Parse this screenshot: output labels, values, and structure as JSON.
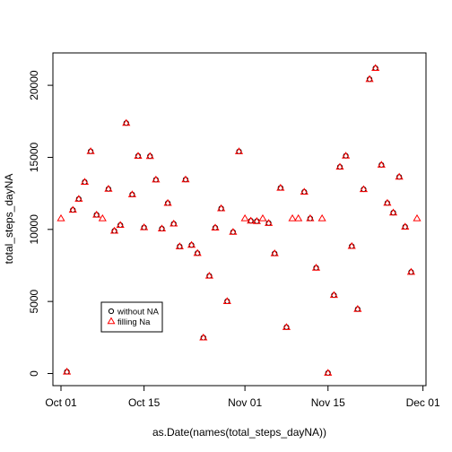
{
  "chart_data": {
    "type": "scatter",
    "xlabel": "as.Date(names(total_steps_dayNA))",
    "ylabel": "total_steps_dayNA",
    "xlim": [
      "2012-10-01",
      "2012-11-30"
    ],
    "ylim": [
      0,
      21500
    ],
    "x_ticks": [
      {
        "date": "2012-10-01",
        "label": "Oct 01"
      },
      {
        "date": "2012-10-15",
        "label": "Oct 15"
      },
      {
        "date": "2012-11-01",
        "label": "Nov 01"
      },
      {
        "date": "2012-11-15",
        "label": "Nov 15"
      },
      {
        "date": "2012-12-01",
        "label": "Dec 01"
      }
    ],
    "y_ticks": [
      0,
      5000,
      10000,
      15000,
      20000
    ],
    "legend": {
      "position": "bottom-left",
      "entries": [
        {
          "label": "without NA",
          "marker": "circle",
          "color": "#000000"
        },
        {
          "label": "filling Na",
          "marker": "triangle",
          "color": "#ff0000"
        }
      ]
    },
    "series": [
      {
        "name": "without NA",
        "marker": "circle",
        "color": "#000000",
        "points": [
          [
            "2012-10-02",
            126
          ],
          [
            "2012-10-03",
            11352
          ],
          [
            "2012-10-04",
            12116
          ],
          [
            "2012-10-05",
            13294
          ],
          [
            "2012-10-06",
            15420
          ],
          [
            "2012-10-07",
            11015
          ],
          [
            "2012-10-09",
            12811
          ],
          [
            "2012-10-10",
            9900
          ],
          [
            "2012-10-11",
            10304
          ],
          [
            "2012-10-12",
            17382
          ],
          [
            "2012-10-13",
            12426
          ],
          [
            "2012-10-14",
            15098
          ],
          [
            "2012-10-15",
            10139
          ],
          [
            "2012-10-16",
            15084
          ],
          [
            "2012-10-17",
            13452
          ],
          [
            "2012-10-18",
            10056
          ],
          [
            "2012-10-19",
            11829
          ],
          [
            "2012-10-20",
            10395
          ],
          [
            "2012-10-21",
            8821
          ],
          [
            "2012-10-22",
            13460
          ],
          [
            "2012-10-23",
            8918
          ],
          [
            "2012-10-24",
            8355
          ],
          [
            "2012-10-25",
            2492
          ],
          [
            "2012-10-26",
            6778
          ],
          [
            "2012-10-27",
            10119
          ],
          [
            "2012-10-28",
            11458
          ],
          [
            "2012-10-29",
            5018
          ],
          [
            "2012-10-30",
            9819
          ],
          [
            "2012-10-31",
            15414
          ],
          [
            "2012-11-02",
            10600
          ],
          [
            "2012-11-03",
            10571
          ],
          [
            "2012-11-05",
            10439
          ],
          [
            "2012-11-06",
            8334
          ],
          [
            "2012-11-07",
            12883
          ],
          [
            "2012-11-08",
            3219
          ],
          [
            "2012-11-11",
            12608
          ],
          [
            "2012-11-12",
            10765
          ],
          [
            "2012-11-13",
            7336
          ],
          [
            "2012-11-15",
            41
          ],
          [
            "2012-11-16",
            5441
          ],
          [
            "2012-11-17",
            14339
          ],
          [
            "2012-11-18",
            15110
          ],
          [
            "2012-11-19",
            8841
          ],
          [
            "2012-11-20",
            4472
          ],
          [
            "2012-11-21",
            12787
          ],
          [
            "2012-11-22",
            20427
          ],
          [
            "2012-11-23",
            21194
          ],
          [
            "2012-11-24",
            14478
          ],
          [
            "2012-11-25",
            11834
          ],
          [
            "2012-11-26",
            11162
          ],
          [
            "2012-11-27",
            13646
          ],
          [
            "2012-11-28",
            10183
          ],
          [
            "2012-11-29",
            7047
          ]
        ]
      },
      {
        "name": "filling Na",
        "marker": "triangle",
        "color": "#ff0000",
        "points": [
          [
            "2012-10-01",
            10766
          ],
          [
            "2012-10-02",
            126
          ],
          [
            "2012-10-03",
            11352
          ],
          [
            "2012-10-04",
            12116
          ],
          [
            "2012-10-05",
            13294
          ],
          [
            "2012-10-06",
            15420
          ],
          [
            "2012-10-07",
            11015
          ],
          [
            "2012-10-08",
            10766
          ],
          [
            "2012-10-09",
            12811
          ],
          [
            "2012-10-10",
            9900
          ],
          [
            "2012-10-11",
            10304
          ],
          [
            "2012-10-12",
            17382
          ],
          [
            "2012-10-13",
            12426
          ],
          [
            "2012-10-14",
            15098
          ],
          [
            "2012-10-15",
            10139
          ],
          [
            "2012-10-16",
            15084
          ],
          [
            "2012-10-17",
            13452
          ],
          [
            "2012-10-18",
            10056
          ],
          [
            "2012-10-19",
            11829
          ],
          [
            "2012-10-20",
            10395
          ],
          [
            "2012-10-21",
            8821
          ],
          [
            "2012-10-22",
            13460
          ],
          [
            "2012-10-23",
            8918
          ],
          [
            "2012-10-24",
            8355
          ],
          [
            "2012-10-25",
            2492
          ],
          [
            "2012-10-26",
            6778
          ],
          [
            "2012-10-27",
            10119
          ],
          [
            "2012-10-28",
            11458
          ],
          [
            "2012-10-29",
            5018
          ],
          [
            "2012-10-30",
            9819
          ],
          [
            "2012-10-31",
            15414
          ],
          [
            "2012-11-01",
            10766
          ],
          [
            "2012-11-02",
            10600
          ],
          [
            "2012-11-03",
            10571
          ],
          [
            "2012-11-04",
            10766
          ],
          [
            "2012-11-05",
            10439
          ],
          [
            "2012-11-06",
            8334
          ],
          [
            "2012-11-07",
            12883
          ],
          [
            "2012-11-08",
            3219
          ],
          [
            "2012-11-09",
            10766
          ],
          [
            "2012-11-10",
            10766
          ],
          [
            "2012-11-11",
            12608
          ],
          [
            "2012-11-12",
            10765
          ],
          [
            "2012-11-13",
            7336
          ],
          [
            "2012-11-14",
            10766
          ],
          [
            "2012-11-15",
            41
          ],
          [
            "2012-11-16",
            5441
          ],
          [
            "2012-11-17",
            14339
          ],
          [
            "2012-11-18",
            15110
          ],
          [
            "2012-11-19",
            8841
          ],
          [
            "2012-11-20",
            4472
          ],
          [
            "2012-11-21",
            12787
          ],
          [
            "2012-11-22",
            20427
          ],
          [
            "2012-11-23",
            21194
          ],
          [
            "2012-11-24",
            14478
          ],
          [
            "2012-11-25",
            11834
          ],
          [
            "2012-11-26",
            11162
          ],
          [
            "2012-11-27",
            13646
          ],
          [
            "2012-11-28",
            10183
          ],
          [
            "2012-11-29",
            7047
          ],
          [
            "2012-11-30",
            10766
          ]
        ]
      }
    ]
  }
}
